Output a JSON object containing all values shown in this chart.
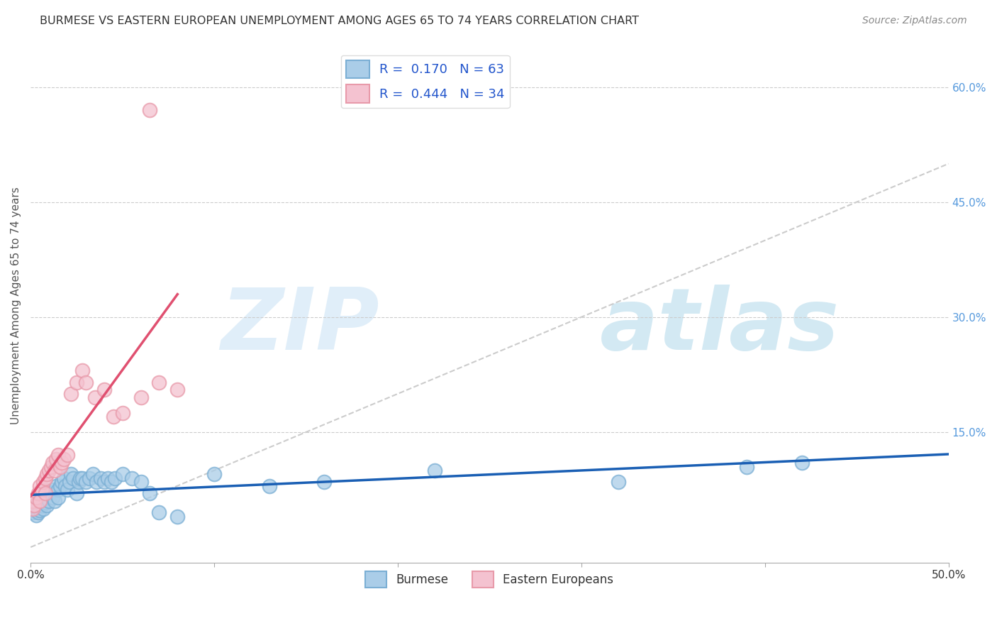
{
  "title": "BURMESE VS EASTERN EUROPEAN UNEMPLOYMENT AMONG AGES 65 TO 74 YEARS CORRELATION CHART",
  "source": "Source: ZipAtlas.com",
  "ylabel": "Unemployment Among Ages 65 to 74 years",
  "xlim": [
    0,
    0.5
  ],
  "ylim": [
    -0.02,
    0.65
  ],
  "xticks": [
    0.0,
    0.1,
    0.2,
    0.3,
    0.4,
    0.5
  ],
  "yticks": [
    0.0,
    0.15,
    0.3,
    0.45,
    0.6
  ],
  "ytick_labels_right": [
    "",
    "15.0%",
    "30.0%",
    "45.0%",
    "60.0%"
  ],
  "xtick_labels": [
    "0.0%",
    "",
    "",
    "",
    "",
    "50.0%"
  ],
  "R_burmese": 0.17,
  "N_burmese": 63,
  "R_eastern": 0.444,
  "N_eastern": 34,
  "burmese_x": [
    0.001,
    0.001,
    0.002,
    0.002,
    0.003,
    0.003,
    0.003,
    0.004,
    0.004,
    0.005,
    0.005,
    0.005,
    0.006,
    0.006,
    0.007,
    0.007,
    0.007,
    0.008,
    0.008,
    0.009,
    0.009,
    0.01,
    0.01,
    0.011,
    0.012,
    0.013,
    0.014,
    0.015,
    0.015,
    0.016,
    0.017,
    0.018,
    0.019,
    0.02,
    0.021,
    0.022,
    0.023,
    0.025,
    0.026,
    0.027,
    0.028,
    0.03,
    0.032,
    0.034,
    0.036,
    0.038,
    0.04,
    0.042,
    0.044,
    0.046,
    0.05,
    0.055,
    0.06,
    0.065,
    0.07,
    0.08,
    0.1,
    0.13,
    0.16,
    0.22,
    0.32,
    0.39,
    0.42
  ],
  "burmese_y": [
    0.05,
    0.045,
    0.052,
    0.048,
    0.055,
    0.05,
    0.042,
    0.058,
    0.045,
    0.06,
    0.052,
    0.048,
    0.065,
    0.055,
    0.062,
    0.05,
    0.07,
    0.058,
    0.075,
    0.055,
    0.065,
    0.07,
    0.06,
    0.075,
    0.065,
    0.06,
    0.08,
    0.075,
    0.065,
    0.08,
    0.085,
    0.09,
    0.08,
    0.075,
    0.085,
    0.095,
    0.09,
    0.07,
    0.085,
    0.09,
    0.09,
    0.085,
    0.09,
    0.095,
    0.085,
    0.09,
    0.085,
    0.09,
    0.085,
    0.09,
    0.095,
    0.09,
    0.085,
    0.07,
    0.045,
    0.04,
    0.095,
    0.08,
    0.085,
    0.1,
    0.085,
    0.105,
    0.11
  ],
  "eastern_x": [
    0.001,
    0.001,
    0.002,
    0.003,
    0.004,
    0.005,
    0.005,
    0.006,
    0.007,
    0.008,
    0.008,
    0.009,
    0.01,
    0.011,
    0.012,
    0.013,
    0.014,
    0.015,
    0.016,
    0.017,
    0.018,
    0.02,
    0.022,
    0.025,
    0.028,
    0.03,
    0.035,
    0.04,
    0.045,
    0.05,
    0.06,
    0.065,
    0.07,
    0.08
  ],
  "eastern_y": [
    0.05,
    0.06,
    0.055,
    0.065,
    0.07,
    0.06,
    0.08,
    0.075,
    0.085,
    0.07,
    0.09,
    0.095,
    0.1,
    0.105,
    0.11,
    0.1,
    0.115,
    0.12,
    0.105,
    0.11,
    0.115,
    0.12,
    0.2,
    0.215,
    0.23,
    0.215,
    0.195,
    0.205,
    0.17,
    0.175,
    0.195,
    0.57,
    0.215,
    0.205
  ],
  "watermark_zip": "ZIP",
  "watermark_atlas": "atlas",
  "background_color": "#ffffff",
  "grid_color": "#cccccc",
  "burmese_face_color": "#aacde8",
  "burmese_edge_color": "#7bafd4",
  "eastern_face_color": "#f4c2d0",
  "eastern_edge_color": "#e89aaa",
  "burmese_line_color": "#1a5fb4",
  "eastern_line_color": "#e05070",
  "diagonal_line_color": "#cccccc",
  "right_tick_color": "#5599dd",
  "title_color": "#333333",
  "source_color": "#888888"
}
